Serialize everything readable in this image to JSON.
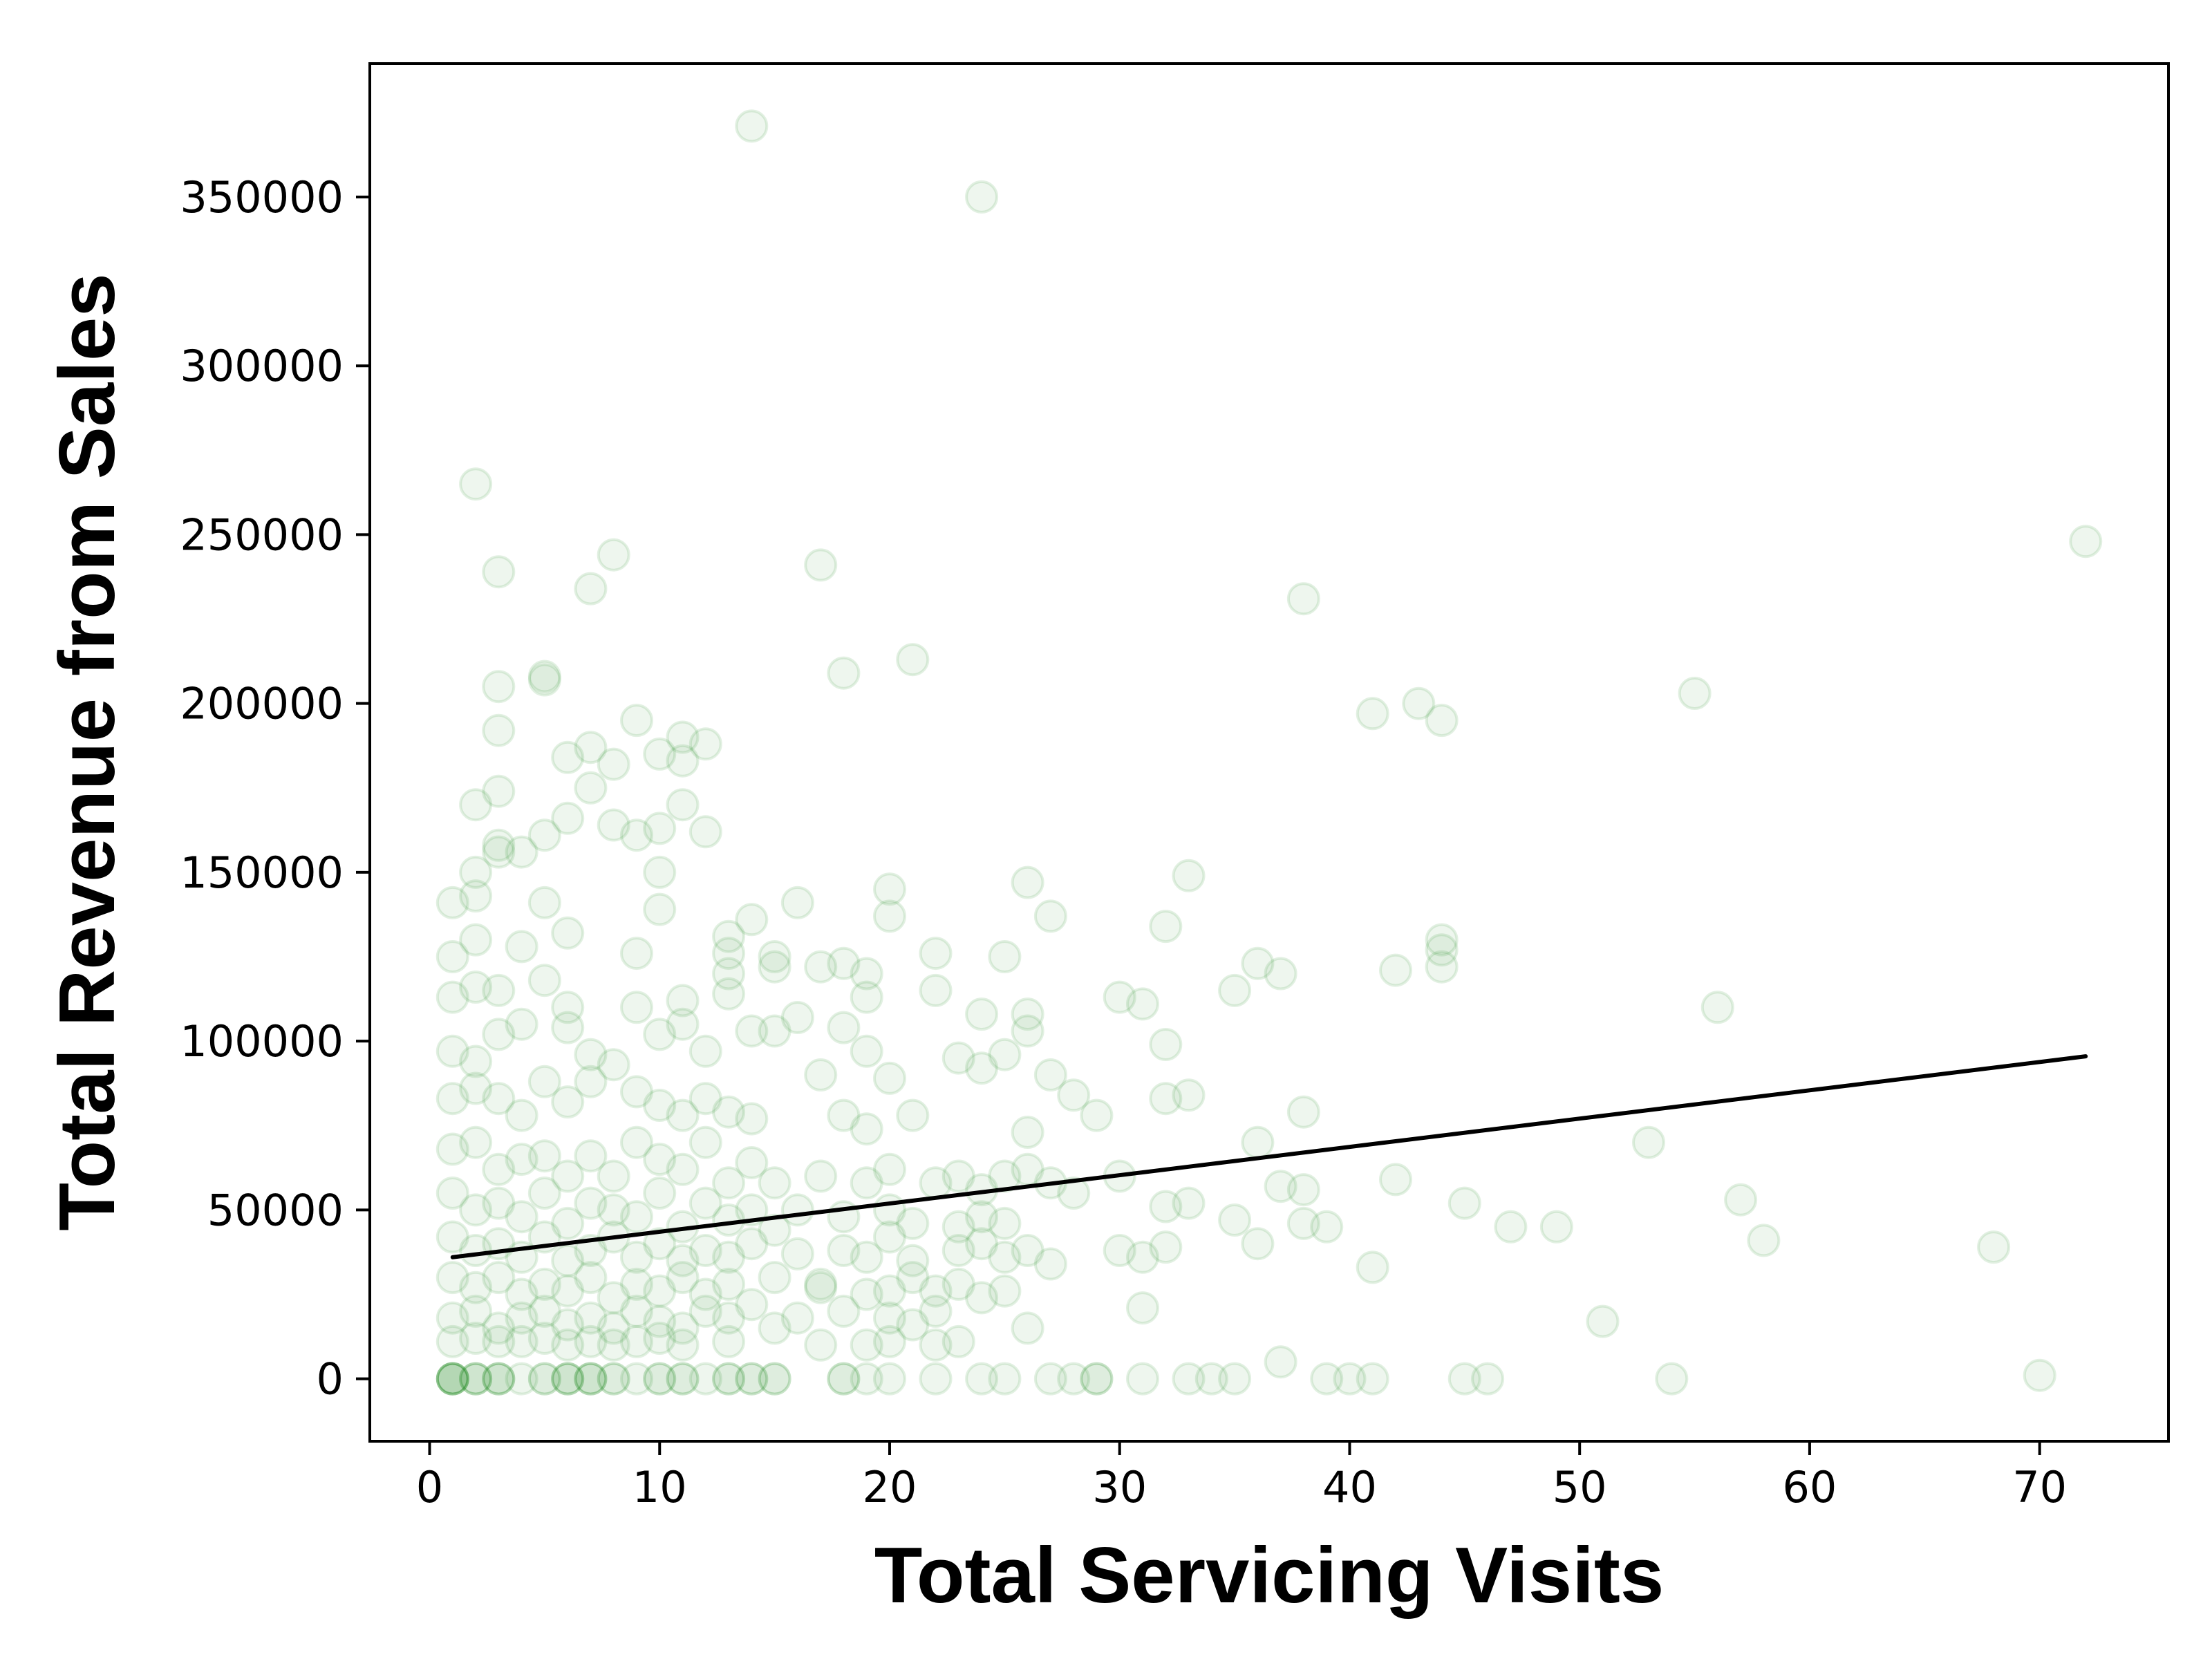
{
  "chart_data": {
    "type": "scatter",
    "title": "",
    "xlabel": "Total Servicing Visits",
    "ylabel": "Total Revenue from Sales",
    "xlim": [
      -2.6,
      75.6
    ],
    "ylim": [
      -18500,
      389500
    ],
    "xticks": [
      0,
      10,
      20,
      30,
      40,
      50,
      60,
      70
    ],
    "yticks": [
      0,
      50000,
      100000,
      150000,
      200000,
      250000,
      300000,
      350000
    ],
    "grid": false,
    "legend": "none",
    "marker_color": "#228B22",
    "marker_alpha": 0.08,
    "line_color": "#000000",
    "points": [
      [
        1,
        0
      ],
      [
        1,
        0
      ],
      [
        1,
        0
      ],
      [
        1,
        0
      ],
      [
        1,
        0
      ],
      [
        2,
        0
      ],
      [
        2,
        0
      ],
      [
        2,
        0
      ],
      [
        3,
        0
      ],
      [
        3,
        0
      ],
      [
        3,
        0
      ],
      [
        4,
        0
      ],
      [
        5,
        0
      ],
      [
        5,
        0
      ],
      [
        6,
        0
      ],
      [
        6,
        0
      ],
      [
        6,
        0
      ],
      [
        7,
        0
      ],
      [
        7,
        0
      ],
      [
        7,
        0
      ],
      [
        8,
        0
      ],
      [
        8,
        0
      ],
      [
        9,
        0
      ],
      [
        10,
        0
      ],
      [
        10,
        0
      ],
      [
        11,
        0
      ],
      [
        11,
        0
      ],
      [
        12,
        0
      ],
      [
        13,
        0
      ],
      [
        13,
        0
      ],
      [
        14,
        0
      ],
      [
        14,
        0
      ],
      [
        15,
        0
      ],
      [
        15,
        0
      ],
      [
        18,
        0
      ],
      [
        18,
        0
      ],
      [
        19,
        0
      ],
      [
        20,
        0
      ],
      [
        22,
        0
      ],
      [
        24,
        0
      ],
      [
        25,
        0
      ],
      [
        27,
        0
      ],
      [
        28,
        0
      ],
      [
        29,
        0
      ],
      [
        29,
        0
      ],
      [
        31,
        0
      ],
      [
        33,
        0
      ],
      [
        34,
        0
      ],
      [
        35,
        0
      ],
      [
        39,
        0
      ],
      [
        40,
        0
      ],
      [
        41,
        0
      ],
      [
        45,
        0
      ],
      [
        46,
        0
      ],
      [
        54,
        0
      ],
      [
        70,
        1000
      ],
      [
        14,
        371000
      ],
      [
        24,
        350000
      ],
      [
        2,
        265000
      ],
      [
        72,
        248000
      ],
      [
        3,
        239000
      ],
      [
        8,
        244000
      ],
      [
        7,
        234000
      ],
      [
        17,
        241000
      ],
      [
        38,
        231000
      ],
      [
        5,
        207000
      ],
      [
        5,
        208000
      ],
      [
        21,
        213000
      ],
      [
        18,
        209000
      ],
      [
        3,
        205000
      ],
      [
        3,
        192000
      ],
      [
        9,
        195000
      ],
      [
        41,
        197000
      ],
      [
        43,
        200000
      ],
      [
        44,
        195000
      ],
      [
        55,
        203000
      ],
      [
        6,
        184000
      ],
      [
        7,
        187000
      ],
      [
        8,
        182000
      ],
      [
        10,
        185000
      ],
      [
        11,
        190000
      ],
      [
        11,
        183000
      ],
      [
        12,
        188000
      ],
      [
        2,
        170000
      ],
      [
        3,
        174000
      ],
      [
        5,
        161000
      ],
      [
        6,
        166000
      ],
      [
        7,
        175000
      ],
      [
        8,
        164000
      ],
      [
        9,
        161000
      ],
      [
        10,
        163000
      ],
      [
        11,
        170000
      ],
      [
        12,
        162000
      ],
      [
        2,
        150000
      ],
      [
        3,
        156000
      ],
      [
        3,
        158000
      ],
      [
        4,
        156000
      ],
      [
        10,
        150000
      ],
      [
        1,
        141000
      ],
      [
        2,
        143000
      ],
      [
        5,
        141000
      ],
      [
        6,
        132000
      ],
      [
        10,
        139000
      ],
      [
        14,
        136000
      ],
      [
        16,
        141000
      ],
      [
        20,
        145000
      ],
      [
        20,
        137000
      ],
      [
        26,
        147000
      ],
      [
        27,
        137000
      ],
      [
        33,
        149000
      ],
      [
        1,
        125000
      ],
      [
        2,
        130000
      ],
      [
        4,
        128000
      ],
      [
        9,
        126000
      ],
      [
        13,
        131000
      ],
      [
        13,
        126000
      ],
      [
        15,
        125000
      ],
      [
        17,
        122000
      ],
      [
        18,
        123000
      ],
      [
        19,
        120000
      ],
      [
        22,
        126000
      ],
      [
        25,
        125000
      ],
      [
        32,
        134000
      ],
      [
        36,
        123000
      ],
      [
        37,
        120000
      ],
      [
        44,
        130000
      ],
      [
        44,
        127000
      ],
      [
        1,
        113000
      ],
      [
        2,
        116000
      ],
      [
        3,
        115000
      ],
      [
        5,
        118000
      ],
      [
        6,
        110000
      ],
      [
        9,
        110000
      ],
      [
        11,
        112000
      ],
      [
        13,
        120000
      ],
      [
        13,
        114000
      ],
      [
        15,
        122000
      ],
      [
        19,
        113000
      ],
      [
        22,
        115000
      ],
      [
        26,
        108000
      ],
      [
        30,
        113000
      ],
      [
        31,
        111000
      ],
      [
        35,
        115000
      ],
      [
        42,
        121000
      ],
      [
        44,
        122000
      ],
      [
        56,
        110000
      ],
      [
        1,
        97000
      ],
      [
        2,
        94000
      ],
      [
        3,
        102000
      ],
      [
        4,
        105000
      ],
      [
        6,
        104000
      ],
      [
        7,
        96000
      ],
      [
        8,
        93000
      ],
      [
        10,
        102000
      ],
      [
        11,
        105000
      ],
      [
        12,
        97000
      ],
      [
        14,
        103000
      ],
      [
        15,
        103000
      ],
      [
        16,
        107000
      ],
      [
        18,
        104000
      ],
      [
        19,
        97000
      ],
      [
        20,
        89000
      ],
      [
        23,
        95000
      ],
      [
        24,
        108000
      ],
      [
        25,
        96000
      ],
      [
        26,
        103000
      ],
      [
        27,
        90000
      ],
      [
        29,
        78000
      ],
      [
        32,
        99000
      ],
      [
        1,
        83000
      ],
      [
        2,
        86000
      ],
      [
        3,
        83000
      ],
      [
        4,
        78000
      ],
      [
        5,
        88000
      ],
      [
        6,
        82000
      ],
      [
        7,
        88000
      ],
      [
        9,
        85000
      ],
      [
        10,
        81000
      ],
      [
        11,
        78000
      ],
      [
        12,
        83000
      ],
      [
        13,
        79000
      ],
      [
        14,
        77000
      ],
      [
        17,
        90000
      ],
      [
        18,
        78000
      ],
      [
        19,
        74000
      ],
      [
        21,
        78000
      ],
      [
        24,
        92000
      ],
      [
        26,
        73000
      ],
      [
        28,
        84000
      ],
      [
        32,
        83000
      ],
      [
        33,
        84000
      ],
      [
        36,
        70000
      ],
      [
        38,
        79000
      ],
      [
        53,
        70000
      ],
      [
        1,
        68000
      ],
      [
        2,
        70000
      ],
      [
        3,
        62000
      ],
      [
        4,
        65000
      ],
      [
        5,
        66000
      ],
      [
        6,
        60000
      ],
      [
        7,
        66000
      ],
      [
        8,
        60000
      ],
      [
        9,
        70000
      ],
      [
        10,
        65000
      ],
      [
        11,
        62000
      ],
      [
        12,
        70000
      ],
      [
        13,
        58000
      ],
      [
        14,
        64000
      ],
      [
        15,
        58000
      ],
      [
        17,
        60000
      ],
      [
        19,
        58000
      ],
      [
        20,
        62000
      ],
      [
        22,
        58000
      ],
      [
        23,
        60000
      ],
      [
        24,
        56000
      ],
      [
        25,
        60000
      ],
      [
        26,
        62000
      ],
      [
        27,
        58000
      ],
      [
        28,
        55000
      ],
      [
        30,
        60000
      ],
      [
        1,
        55000
      ],
      [
        2,
        50000
      ],
      [
        3,
        52000
      ],
      [
        4,
        48000
      ],
      [
        5,
        55000
      ],
      [
        6,
        46000
      ],
      [
        7,
        52000
      ],
      [
        8,
        50000
      ],
      [
        9,
        48000
      ],
      [
        10,
        55000
      ],
      [
        11,
        45000
      ],
      [
        12,
        52000
      ],
      [
        13,
        47000
      ],
      [
        14,
        50000
      ],
      [
        15,
        44000
      ],
      [
        16,
        50000
      ],
      [
        18,
        48000
      ],
      [
        20,
        50000
      ],
      [
        21,
        46000
      ],
      [
        23,
        45000
      ],
      [
        24,
        48000
      ],
      [
        25,
        46000
      ],
      [
        32,
        51000
      ],
      [
        33,
        52000
      ],
      [
        35,
        47000
      ],
      [
        37,
        57000
      ],
      [
        38,
        56000
      ],
      [
        38,
        46000
      ],
      [
        39,
        45000
      ],
      [
        42,
        59000
      ],
      [
        45,
        52000
      ],
      [
        47,
        45000
      ],
      [
        49,
        45000
      ],
      [
        57,
        53000
      ],
      [
        1,
        42000
      ],
      [
        2,
        38000
      ],
      [
        3,
        40000
      ],
      [
        4,
        36000
      ],
      [
        5,
        42000
      ],
      [
        6,
        35000
      ],
      [
        7,
        38000
      ],
      [
        8,
        42000
      ],
      [
        9,
        36000
      ],
      [
        10,
        40000
      ],
      [
        11,
        35000
      ],
      [
        12,
        38000
      ],
      [
        13,
        36000
      ],
      [
        14,
        40000
      ],
      [
        16,
        37000
      ],
      [
        18,
        38000
      ],
      [
        19,
        36000
      ],
      [
        20,
        42000
      ],
      [
        21,
        35000
      ],
      [
        23,
        38000
      ],
      [
        24,
        40000
      ],
      [
        25,
        36000
      ],
      [
        26,
        38000
      ],
      [
        27,
        34000
      ],
      [
        30,
        38000
      ],
      [
        31,
        36000
      ],
      [
        32,
        39000
      ],
      [
        36,
        40000
      ],
      [
        41,
        33000
      ],
      [
        58,
        41000
      ],
      [
        68,
        39000
      ],
      [
        1,
        30000
      ],
      [
        2,
        27000
      ],
      [
        3,
        30000
      ],
      [
        4,
        25000
      ],
      [
        5,
        28000
      ],
      [
        6,
        26000
      ],
      [
        7,
        30000
      ],
      [
        8,
        24000
      ],
      [
        9,
        28000
      ],
      [
        10,
        26000
      ],
      [
        11,
        30000
      ],
      [
        12,
        25000
      ],
      [
        13,
        28000
      ],
      [
        15,
        30000
      ],
      [
        17,
        28000
      ],
      [
        17,
        27000
      ],
      [
        19,
        25000
      ],
      [
        20,
        26000
      ],
      [
        21,
        30000
      ],
      [
        22,
        26000
      ],
      [
        23,
        28000
      ],
      [
        24,
        24000
      ],
      [
        25,
        26000
      ],
      [
        1,
        18000
      ],
      [
        2,
        20000
      ],
      [
        3,
        15000
      ],
      [
        4,
        18000
      ],
      [
        5,
        20000
      ],
      [
        6,
        16000
      ],
      [
        7,
        18000
      ],
      [
        8,
        15000
      ],
      [
        9,
        20000
      ],
      [
        10,
        17000
      ],
      [
        11,
        15000
      ],
      [
        12,
        20000
      ],
      [
        13,
        18000
      ],
      [
        14,
        22000
      ],
      [
        15,
        15000
      ],
      [
        16,
        18000
      ],
      [
        18,
        20000
      ],
      [
        20,
        18000
      ],
      [
        21,
        16000
      ],
      [
        22,
        20000
      ],
      [
        26,
        15000
      ],
      [
        31,
        21000
      ],
      [
        51,
        17000
      ],
      [
        1,
        11000
      ],
      [
        2,
        12000
      ],
      [
        3,
        11000
      ],
      [
        4,
        11000
      ],
      [
        5,
        12000
      ],
      [
        6,
        10000
      ],
      [
        7,
        11000
      ],
      [
        8,
        10000
      ],
      [
        9,
        11000
      ],
      [
        10,
        12000
      ],
      [
        11,
        10000
      ],
      [
        13,
        11000
      ],
      [
        17,
        10000
      ],
      [
        19,
        10000
      ],
      [
        20,
        11000
      ],
      [
        22,
        10000
      ],
      [
        23,
        11000
      ],
      [
        37,
        5000
      ]
    ],
    "fit_line": {
      "x": [
        1,
        72
      ],
      "y": [
        36000,
        95500
      ]
    }
  }
}
